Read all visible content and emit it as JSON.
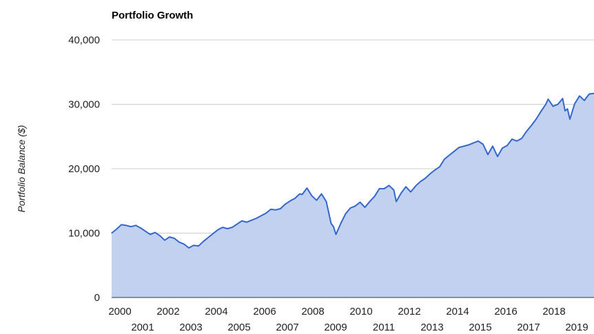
{
  "chart_data": {
    "type": "area",
    "title": "Portfolio Growth",
    "xlabel": "",
    "ylabel": "Portfolio Balance ($)",
    "ylim": [
      0,
      40000
    ],
    "xlim": [
      2000.0,
      2020.0
    ],
    "y_ticks": [
      "0",
      "10,000",
      "20,000",
      "30,000",
      "40,000"
    ],
    "x_ticks_row1": [
      "2000",
      "2002",
      "2004",
      "2006",
      "2008",
      "2010",
      "2012",
      "2014",
      "2016",
      "2018"
    ],
    "x_ticks_row2": [
      "2001",
      "2003",
      "2005",
      "2007",
      "2009",
      "2011",
      "2013",
      "2015",
      "2017",
      "2019"
    ],
    "grid": true,
    "legend": "none",
    "colors": {
      "line": "#3366cc",
      "fill": "#c2d1f0",
      "grid": "#cccccc"
    },
    "x": [
      2000.0,
      2000.2,
      2000.4,
      2000.6,
      2000.8,
      2001.0,
      2001.2,
      2001.4,
      2001.6,
      2001.8,
      2002.0,
      2002.2,
      2002.4,
      2002.6,
      2002.8,
      2003.0,
      2003.2,
      2003.4,
      2003.6,
      2003.8,
      2004.0,
      2004.2,
      2004.4,
      2004.6,
      2004.8,
      2005.0,
      2005.2,
      2005.4,
      2005.6,
      2005.8,
      2006.0,
      2006.2,
      2006.4,
      2006.6,
      2006.8,
      2007.0,
      2007.2,
      2007.4,
      2007.6,
      2007.8,
      2007.9,
      2008.1,
      2008.3,
      2008.5,
      2008.7,
      2008.9,
      2009.0,
      2009.1,
      2009.2,
      2009.3,
      2009.5,
      2009.7,
      2009.9,
      2010.1,
      2010.3,
      2010.5,
      2010.7,
      2010.9,
      2011.1,
      2011.3,
      2011.5,
      2011.7,
      2011.8,
      2012.0,
      2012.2,
      2012.4,
      2012.6,
      2012.8,
      2013.0,
      2013.2,
      2013.4,
      2013.6,
      2013.8,
      2014.0,
      2014.2,
      2014.4,
      2014.6,
      2014.8,
      2015.0,
      2015.2,
      2015.4,
      2015.6,
      2015.8,
      2016.0,
      2016.2,
      2016.4,
      2016.6,
      2016.8,
      2017.0,
      2017.2,
      2017.4,
      2017.6,
      2017.8,
      2018.0,
      2018.1,
      2018.3,
      2018.5,
      2018.7,
      2018.8,
      2018.9,
      2019.0,
      2019.2,
      2019.4,
      2019.6,
      2019.8,
      2020.0
    ],
    "values": [
      10000,
      10600,
      11300,
      11200,
      11000,
      11200,
      10800,
      10300,
      9800,
      10100,
      9600,
      8900,
      9400,
      9200,
      8600,
      8300,
      7700,
      8100,
      8000,
      8700,
      9300,
      9900,
      10500,
      10900,
      10700,
      10900,
      11400,
      11900,
      11700,
      12000,
      12300,
      12700,
      13100,
      13700,
      13600,
      13800,
      14500,
      15000,
      15400,
      16100,
      16000,
      17000,
      15800,
      15100,
      16100,
      14900,
      13200,
      11500,
      11000,
      9800,
      11500,
      13000,
      13900,
      14200,
      14800,
      14000,
      14900,
      15700,
      16900,
      16900,
      17400,
      16700,
      14900,
      16200,
      17200,
      16400,
      17300,
      18000,
      18500,
      19200,
      19800,
      20300,
      21500,
      22100,
      22700,
      23300,
      23500,
      23700,
      24000,
      24300,
      23800,
      22200,
      23500,
      21900,
      23200,
      23600,
      24600,
      24300,
      24700,
      25800,
      26700,
      27700,
      28900,
      30000,
      30800,
      29700,
      30000,
      30900,
      29000,
      29300,
      27700,
      30100,
      31300,
      30600,
      31600,
      31700
    ]
  }
}
